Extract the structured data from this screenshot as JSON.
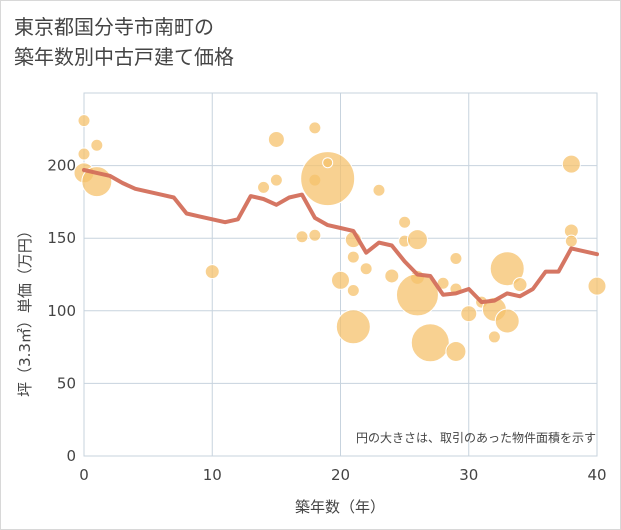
{
  "title_lines": [
    "東京都国分寺市南町の",
    "築年数別中古戸建て価格"
  ],
  "chart_data": {
    "type": "scatter+line",
    "title": "東京都国分寺市南町の築年数別中古戸建て価格",
    "xlabel": "築年数（年）",
    "ylabel": "坪（3.3㎡）単価（万円）",
    "xlim": [
      0,
      40
    ],
    "ylim": [
      0,
      250
    ],
    "xticks": [
      0,
      10,
      20,
      30,
      40
    ],
    "yticks": [
      0,
      50,
      100,
      150,
      200
    ],
    "grid": true,
    "annotation": "円の大きさは、取引のあった物件面積を示す",
    "colors": {
      "bubble": "#f5c16c",
      "line": "#d36f5b",
      "grid": "#c7d3de",
      "text": "#444444"
    },
    "bubbles": [
      {
        "x": 0,
        "y": 231,
        "size": 6
      },
      {
        "x": 0,
        "y": 208,
        "size": 6
      },
      {
        "x": 0,
        "y": 195,
        "size": 10
      },
      {
        "x": 1,
        "y": 214,
        "size": 6
      },
      {
        "x": 1,
        "y": 189,
        "size": 15
      },
      {
        "x": 10,
        "y": 127,
        "size": 7
      },
      {
        "x": 14,
        "y": 185,
        "size": 6
      },
      {
        "x": 15,
        "y": 218,
        "size": 8
      },
      {
        "x": 15,
        "y": 190,
        "size": 6
      },
      {
        "x": 17,
        "y": 151,
        "size": 6
      },
      {
        "x": 18,
        "y": 226,
        "size": 6
      },
      {
        "x": 18,
        "y": 190,
        "size": 6
      },
      {
        "x": 18,
        "y": 152,
        "size": 6
      },
      {
        "x": 19,
        "y": 191,
        "size": 27
      },
      {
        "x": 19,
        "y": 202,
        "size": 5
      },
      {
        "x": 20,
        "y": 121,
        "size": 9
      },
      {
        "x": 21,
        "y": 149,
        "size": 8
      },
      {
        "x": 21,
        "y": 137,
        "size": 6
      },
      {
        "x": 21,
        "y": 114,
        "size": 6
      },
      {
        "x": 21,
        "y": 89,
        "size": 17
      },
      {
        "x": 22,
        "y": 129,
        "size": 6
      },
      {
        "x": 23,
        "y": 183,
        "size": 6
      },
      {
        "x": 24,
        "y": 124,
        "size": 7
      },
      {
        "x": 25,
        "y": 161,
        "size": 6
      },
      {
        "x": 25,
        "y": 148,
        "size": 6
      },
      {
        "x": 26,
        "y": 149,
        "size": 10
      },
      {
        "x": 26,
        "y": 123,
        "size": 7
      },
      {
        "x": 26,
        "y": 111,
        "size": 21
      },
      {
        "x": 27,
        "y": 78,
        "size": 19
      },
      {
        "x": 28,
        "y": 119,
        "size": 6
      },
      {
        "x": 29,
        "y": 136,
        "size": 6
      },
      {
        "x": 29,
        "y": 115,
        "size": 6
      },
      {
        "x": 29,
        "y": 72,
        "size": 10
      },
      {
        "x": 30,
        "y": 98,
        "size": 8
      },
      {
        "x": 31,
        "y": 106,
        "size": 6
      },
      {
        "x": 32,
        "y": 101,
        "size": 12
      },
      {
        "x": 32,
        "y": 82,
        "size": 6
      },
      {
        "x": 33,
        "y": 129,
        "size": 17
      },
      {
        "x": 33,
        "y": 93,
        "size": 12
      },
      {
        "x": 34,
        "y": 118,
        "size": 7
      },
      {
        "x": 38,
        "y": 201,
        "size": 9
      },
      {
        "x": 38,
        "y": 155,
        "size": 7
      },
      {
        "x": 38,
        "y": 148,
        "size": 6
      },
      {
        "x": 40,
        "y": 117,
        "size": 9
      }
    ],
    "line": {
      "x": [
        0,
        1,
        2,
        3,
        4,
        5,
        6,
        7,
        8,
        9,
        10,
        11,
        12,
        13,
        14,
        15,
        16,
        17,
        18,
        19,
        20,
        21,
        22,
        23,
        24,
        25,
        26,
        27,
        28,
        29,
        30,
        31,
        32,
        33,
        34,
        35,
        36,
        37,
        38,
        39,
        40
      ],
      "y": [
        197,
        195,
        193,
        188,
        184,
        182,
        180,
        178,
        167,
        165,
        163,
        161,
        163,
        179,
        177,
        173,
        178,
        180,
        164,
        159,
        157,
        155,
        140,
        147,
        145,
        134,
        125,
        124,
        111,
        112,
        115,
        106,
        107,
        112,
        110,
        115,
        127,
        127,
        143,
        141,
        139
      ]
    }
  }
}
